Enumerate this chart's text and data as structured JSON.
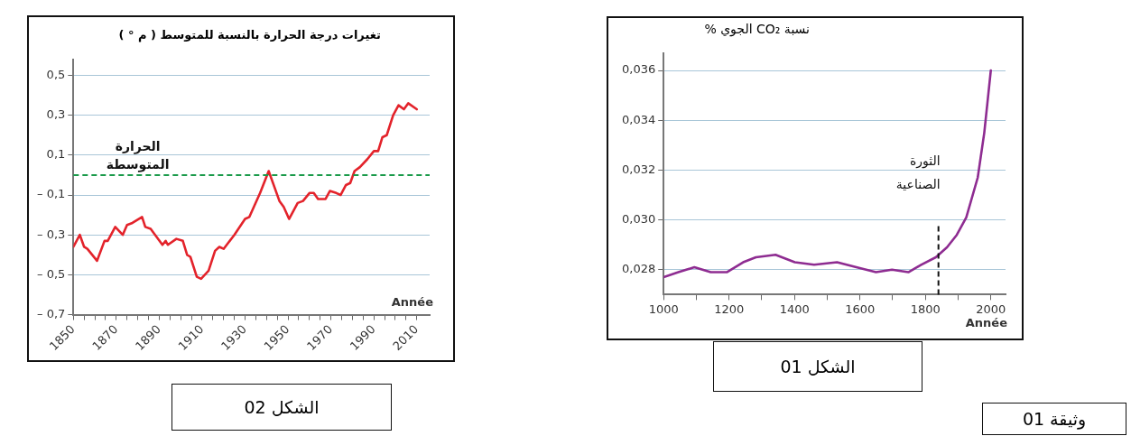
{
  "chart_data": [
    {
      "type": "line",
      "ylabel": "تغيرات درجة الحرارة بالنسبة للمتوسط ( م ° )",
      "xlabel": "Année",
      "series": [
        {
          "color": "#e3232b",
          "x": [
            1850,
            1853,
            1855,
            1856.5,
            1861,
            1864.5,
            1866,
            1869.5,
            1873,
            1875,
            1877.5,
            1882,
            1883.5,
            1886,
            1891.5,
            1893,
            1894,
            1898,
            1901,
            1903,
            1904.5,
            1907.5,
            1909.5,
            1913,
            1916,
            1918,
            1920,
            1925,
            1930,
            1932,
            1937,
            1941,
            1946,
            1948,
            1950.5,
            1954.5,
            1957,
            1960,
            1962,
            1964,
            1967.5,
            1969.5,
            1972.5,
            1974.5,
            1977,
            1979,
            1981,
            1983.5,
            1987,
            1990,
            1992,
            1994,
            1996,
            1999,
            2001.5,
            2004,
            2006,
            2010
          ],
          "values": [
            -0.36,
            -0.3,
            -0.36,
            -0.37,
            -0.43,
            -0.33,
            -0.33,
            -0.26,
            -0.3,
            -0.25,
            -0.24,
            -0.21,
            -0.26,
            -0.27,
            -0.35,
            -0.33,
            -0.35,
            -0.32,
            -0.33,
            -0.4,
            -0.41,
            -0.51,
            -0.52,
            -0.48,
            -0.38,
            -0.36,
            -0.37,
            -0.3,
            -0.22,
            -0.21,
            -0.09,
            0.02,
            -0.13,
            -0.16,
            -0.22,
            -0.14,
            -0.13,
            -0.09,
            -0.09,
            -0.12,
            -0.12,
            -0.08,
            -0.09,
            -0.1,
            -0.05,
            -0.04,
            0.02,
            0.04,
            0.08,
            0.12,
            0.12,
            0.19,
            0.2,
            0.3,
            0.35,
            0.33,
            0.36,
            0.33
          ]
        }
      ],
      "xlim": [
        1850,
        2016
      ],
      "ylim": [
        -0.7,
        0.58
      ],
      "xticks": [
        1850,
        {
          "value": 1855,
          "label": null
        },
        {
          "value": 1860,
          "label": null
        },
        {
          "value": 1865,
          "label": null
        },
        1870,
        {
          "value": 1875,
          "label": null
        },
        {
          "value": 1880,
          "label": null
        },
        {
          "value": 1885,
          "label": null
        },
        1890,
        {
          "value": 1895,
          "label": null
        },
        {
          "value": 1900,
          "label": null
        },
        {
          "value": 1905,
          "label": null
        },
        1910,
        {
          "value": 1915,
          "label": null
        },
        {
          "value": 1920,
          "label": null
        },
        {
          "value": 1925,
          "label": null
        },
        1930,
        {
          "value": 1935,
          "label": null
        },
        {
          "value": 1940,
          "label": null
        },
        {
          "value": 1945,
          "label": null
        },
        1950,
        {
          "value": 1955,
          "label": null
        },
        {
          "value": 1960,
          "label": null
        },
        {
          "value": 1965,
          "label": null
        },
        1970,
        {
          "value": 1975,
          "label": null
        },
        {
          "value": 1980,
          "label": null
        },
        {
          "value": 1985,
          "label": null
        },
        1990,
        {
          "value": 1995,
          "label": null
        },
        {
          "value": 2000,
          "label": null
        },
        {
          "value": 2005,
          "label": null
        },
        2010
      ],
      "yticks": [
        {
          "value": -0.7,
          "label": "– 0,7"
        },
        {
          "value": -0.5,
          "label": "– 0,5"
        },
        {
          "value": -0.3,
          "label": "– 0,3"
        },
        {
          "value": -0.1,
          "label": "– 0,1"
        },
        {
          "value": 0.1,
          "label": "0,1"
        },
        {
          "value": 0.3,
          "label": "0,3"
        },
        {
          "value": 0.5,
          "label": "0,5"
        }
      ],
      "grid": "y",
      "legend": false,
      "marker": "none",
      "ref_lines": [
        {
          "axis": "y",
          "value": 0,
          "label": "الحرارة المتوسطة",
          "color": "#1a9a4a",
          "line_style": "dashed"
        }
      ],
      "annotations": [
        "الشكل 02"
      ]
    },
    {
      "type": "line",
      "ylabel": "نسبة CO₂ الجوي %",
      "xlabel": "Année",
      "series": [
        {
          "color": "#8e2c91",
          "x": [
            1000,
            1045,
            1094,
            1144,
            1193,
            1243,
            1282,
            1342,
            1401,
            1460,
            1530,
            1589,
            1649,
            1698,
            1748,
            1787,
            1832,
            1866,
            1896,
            1925,
            1960,
            1980,
            2000
          ],
          "values": [
            0.0277,
            0.0279,
            0.0281,
            0.0279,
            0.0279,
            0.0283,
            0.0285,
            0.0286,
            0.0283,
            0.0282,
            0.0283,
            0.0281,
            0.0279,
            0.028,
            0.0279,
            0.0282,
            0.0285,
            0.0289,
            0.0294,
            0.0301,
            0.0317,
            0.0335,
            0.036
          ]
        }
      ],
      "xlim": [
        1000,
        2045
      ],
      "ylim": [
        0.027,
        0.0367
      ],
      "xticks": [
        1000,
        {
          "value": 1100,
          "label": null
        },
        1200,
        {
          "value": 1300,
          "label": null
        },
        1400,
        {
          "value": 1500,
          "label": null
        },
        1600,
        {
          "value": 1700,
          "label": null
        },
        1800,
        {
          "value": 1900,
          "label": null
        },
        2000
      ],
      "yticks": [
        {
          "value": 0.028,
          "label": "0,028"
        },
        {
          "value": 0.03,
          "label": "0,030"
        },
        {
          "value": 0.032,
          "label": "0,032"
        },
        {
          "value": 0.034,
          "label": "0,034"
        },
        {
          "value": 0.036,
          "label": "0,036"
        }
      ],
      "grid": "y",
      "legend": false,
      "marker": "none",
      "ref_lines": [
        {
          "axis": "x",
          "value": 1840,
          "label": "الثورة الصناعية",
          "color": "#111111",
          "line_style": "dashed"
        }
      ],
      "annotations": [
        "الشكل 01",
        "وثيقة 01"
      ]
    }
  ]
}
